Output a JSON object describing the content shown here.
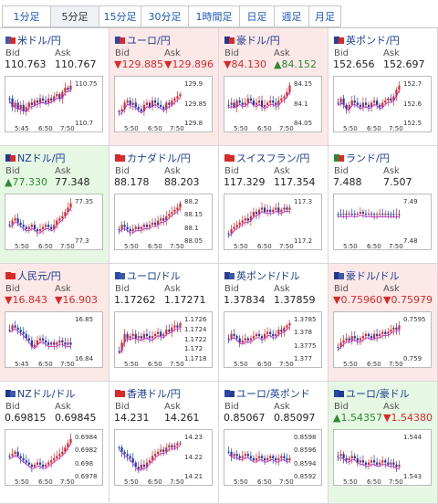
{
  "tabs": [
    {
      "label": "1分足",
      "active": false
    },
    {
      "label": "5分足",
      "active": true
    },
    {
      "label": "15分足",
      "active": false
    },
    {
      "label": "30分足",
      "active": false
    },
    {
      "label": "1時間足",
      "active": false
    },
    {
      "label": "日足",
      "active": false
    },
    {
      "label": "週足",
      "active": false
    },
    {
      "label": "月足",
      "active": false
    }
  ],
  "labels": {
    "bid": "Bid",
    "ask": "Ask"
  },
  "colors": {
    "up_bg": "#e6f7e3",
    "down_bg": "#fde8e8",
    "up_text": "#2d8a32",
    "down_text": "#d92a2a",
    "candle_up": "#d92a2a",
    "candle_down": "#1a3db8",
    "ma": "#c020c0"
  },
  "pairs": [
    {
      "name": "米ドル/円",
      "flag": "us-jp-flag-icon",
      "bid": "110.763",
      "ask": "110.767",
      "dir": "flat",
      "yticks": [
        "110.75",
        "110.7"
      ],
      "xticks": [
        "5:45",
        "6:50",
        "7:50"
      ],
      "trend": [
        0.6,
        0.4,
        0.5,
        0.35,
        0.45,
        0.3,
        0.4,
        0.5,
        0.45,
        0.55,
        0.5,
        0.6,
        0.55,
        0.5,
        0.6,
        0.55,
        0.65,
        0.7,
        0.6,
        0.75,
        0.85,
        0.8,
        0.9
      ]
    },
    {
      "name": "ユーロ/円",
      "flag": "eu-jp-flag-icon",
      "bid": "▼129.885",
      "ask": "▼129.896",
      "dir": "down",
      "yticks": [
        "129.9",
        "129.85",
        "129.8"
      ],
      "xticks": [
        "5:50",
        "6:50",
        "7:50"
      ],
      "trend": [
        0.3,
        0.35,
        0.5,
        0.55,
        0.45,
        0.5,
        0.4,
        0.35,
        0.3,
        0.45,
        0.5,
        0.4,
        0.55,
        0.5,
        0.45,
        0.4,
        0.35,
        0.5,
        0.45,
        0.55,
        0.6,
        0.65,
        0.7
      ]
    },
    {
      "name": "豪ドル/円",
      "flag": "au-jp-flag-icon",
      "bid": "▼84.130",
      "ask": "▲84.152",
      "dir": "down",
      "yticks": [
        "84.15",
        "84.1",
        "84.05"
      ],
      "xticks": [
        "5:50",
        "6:50",
        "7:50"
      ],
      "trend": [
        0.45,
        0.5,
        0.4,
        0.55,
        0.5,
        0.45,
        0.5,
        0.6,
        0.55,
        0.45,
        0.5,
        0.55,
        0.4,
        0.45,
        0.5,
        0.55,
        0.5,
        0.45,
        0.55,
        0.6,
        0.65,
        0.75,
        0.9
      ]
    },
    {
      "name": "英ポンド/円",
      "flag": "gb-jp-flag-icon",
      "bid": "152.656",
      "ask": "152.697",
      "dir": "flat",
      "yticks": [
        "152.7",
        "152.6",
        "152.5"
      ],
      "xticks": [
        "5:50",
        "6:50",
        "7:50"
      ],
      "trend": [
        0.5,
        0.6,
        0.45,
        0.35,
        0.45,
        0.55,
        0.5,
        0.45,
        0.4,
        0.5,
        0.45,
        0.4,
        0.5,
        0.55,
        0.45,
        0.4,
        0.5,
        0.55,
        0.6,
        0.55,
        0.65,
        0.8,
        0.9
      ]
    },
    {
      "name": "NZドル/円",
      "flag": "nz-jp-flag-icon",
      "bid": "▲77.330",
      "ask": "77.348",
      "dir": "up",
      "yticks": [
        "77.35",
        "77.3"
      ],
      "xticks": [
        "5:50",
        "6:50",
        "7:50"
      ],
      "trend": [
        0.4,
        0.5,
        0.55,
        0.45,
        0.4,
        0.35,
        0.3,
        0.35,
        0.4,
        0.3,
        0.25,
        0.3,
        0.35,
        0.4,
        0.35,
        0.3,
        0.4,
        0.5,
        0.55,
        0.6,
        0.7,
        0.8,
        0.9
      ]
    },
    {
      "name": "カナダドル/円",
      "flag": "ca-jp-flag-icon",
      "bid": "88.178",
      "ask": "88.203",
      "dir": "flat",
      "yticks": [
        "88.2",
        "88.15",
        "88.1",
        "88.05"
      ],
      "xticks": [
        "5:50",
        "6:50",
        "7:50"
      ],
      "trend": [
        0.3,
        0.4,
        0.35,
        0.3,
        0.25,
        0.3,
        0.35,
        0.3,
        0.35,
        0.4,
        0.35,
        0.4,
        0.45,
        0.4,
        0.5,
        0.55,
        0.5,
        0.6,
        0.65,
        0.7,
        0.75,
        0.8,
        0.9
      ]
    },
    {
      "name": "スイスフラン/円",
      "flag": "ch-jp-flag-icon",
      "bid": "117.329",
      "ask": "117.354",
      "dir": "flat",
      "yticks": [
        "117.3",
        "117.2"
      ],
      "xticks": [
        "5:50",
        "6:50",
        "7:50"
      ],
      "trend": [
        0.2,
        0.3,
        0.35,
        0.4,
        0.45,
        0.5,
        0.55,
        0.5,
        0.6,
        0.7,
        0.65,
        0.75,
        0.8,
        0.7,
        0.75,
        0.7,
        0.75,
        0.8,
        0.7,
        0.75,
        0.8,
        0.75,
        0.8
      ]
    },
    {
      "name": "ランド/円",
      "flag": "za-jp-flag-icon",
      "bid": "7.488",
      "ask": "7.507",
      "dir": "flat",
      "yticks": [
        "7.49",
        "7.48"
      ],
      "xticks": [
        "5:50",
        "6:50",
        "7:50"
      ],
      "trend": [
        0.65,
        0.65,
        0.66,
        0.65,
        0.66,
        0.66,
        0.65,
        0.66,
        0.7,
        0.66,
        0.65,
        0.66,
        0.65,
        0.64,
        0.65,
        0.66,
        0.65,
        0.66,
        0.65,
        0.65,
        0.64,
        0.65,
        0.65
      ]
    },
    {
      "name": "人民元/円",
      "flag": "cn-jp-flag-icon",
      "bid": "▼16.843",
      "ask": "▼16.903",
      "dir": "down",
      "yticks": [
        "16.85",
        "16.84"
      ],
      "xticks": [
        "5:45",
        "6:50",
        "7:50"
      ],
      "trend": [
        0.7,
        0.8,
        0.75,
        0.7,
        0.65,
        0.6,
        0.5,
        0.45,
        0.3,
        0.35,
        0.45,
        0.5,
        0.45,
        0.4,
        0.35,
        0.4,
        0.35,
        0.4,
        0.45,
        0.4,
        0.35,
        0.4,
        0.35
      ]
    },
    {
      "name": "ユーロ/ドル",
      "flag": "eu-us-flag-icon",
      "bid": "1.17262",
      "ask": "1.17271",
      "dir": "flat",
      "yticks": [
        "1.1726",
        "1.1724",
        "1.1722",
        "1.172",
        "1.1718"
      ],
      "xticks": [
        "5:50",
        "6:50",
        "7:50"
      ],
      "trend": [
        0.2,
        0.4,
        0.6,
        0.5,
        0.55,
        0.6,
        0.5,
        0.55,
        0.5,
        0.6,
        0.55,
        0.5,
        0.55,
        0.6,
        0.65,
        0.55,
        0.6,
        0.7,
        0.65,
        0.75,
        0.8,
        0.75,
        0.85
      ]
    },
    {
      "name": "英ポンド/ドル",
      "flag": "gb-us-flag-icon",
      "bid": "1.37834",
      "ask": "1.37859",
      "dir": "flat",
      "yticks": [
        "1.3785",
        "1.378",
        "1.3775",
        "1.377"
      ],
      "xticks": [
        "5:50",
        "6:50",
        "7:50"
      ],
      "trend": [
        0.5,
        0.6,
        0.55,
        0.5,
        0.4,
        0.45,
        0.5,
        0.45,
        0.5,
        0.55,
        0.6,
        0.55,
        0.5,
        0.6,
        0.65,
        0.6,
        0.55,
        0.6,
        0.7,
        0.65,
        0.75,
        0.8,
        0.85
      ]
    },
    {
      "name": "豪ドル/ドル",
      "flag": "au-us-flag-icon",
      "bid": "▼0.75960",
      "ask": "▼0.75979",
      "dir": "down",
      "yticks": [
        "0.7595",
        "0.759"
      ],
      "xticks": [
        "5:50",
        "6:50",
        "7:50"
      ],
      "trend": [
        0.3,
        0.4,
        0.45,
        0.5,
        0.45,
        0.55,
        0.5,
        0.45,
        0.5,
        0.55,
        0.6,
        0.55,
        0.5,
        0.6,
        0.55,
        0.6,
        0.65,
        0.6,
        0.65,
        0.7,
        0.75,
        0.7,
        0.8
      ]
    },
    {
      "name": "NZドル/ドル",
      "flag": "nz-us-flag-icon",
      "bid": "0.69815",
      "ask": "0.69845",
      "dir": "flat",
      "yticks": [
        "0.6984",
        "0.6982",
        "0.698",
        "0.6978"
      ],
      "xticks": [
        "5:50",
        "6:50",
        "7:50"
      ],
      "trend": [
        0.5,
        0.55,
        0.6,
        0.5,
        0.45,
        0.4,
        0.35,
        0.3,
        0.25,
        0.3,
        0.35,
        0.3,
        0.25,
        0.3,
        0.35,
        0.4,
        0.45,
        0.5,
        0.55,
        0.6,
        0.7,
        0.8,
        0.9
      ]
    },
    {
      "name": "香港ドル/円",
      "flag": "hk-jp-flag-icon",
      "bid": "14.231",
      "ask": "14.261",
      "dir": "flat",
      "yticks": [
        "14.23",
        "14.22",
        "14.21"
      ],
      "xticks": [
        "5:50",
        "6:50",
        "7:50"
      ],
      "trend": [
        0.7,
        0.6,
        0.55,
        0.5,
        0.45,
        0.35,
        0.25,
        0.2,
        0.3,
        0.25,
        0.35,
        0.4,
        0.5,
        0.55,
        0.6,
        0.65,
        0.6,
        0.7,
        0.75,
        0.7,
        0.75,
        0.8,
        0.8
      ]
    },
    {
      "name": "ユーロ/英ポンド",
      "flag": "eu-gb-flag-icon",
      "bid": "0.85067",
      "ask": "0.85097",
      "dir": "flat",
      "yticks": [
        "0.8598",
        "0.8596",
        "0.8594",
        "0.8592"
      ],
      "xticks": [
        "5:50",
        "6:50",
        "7:50"
      ],
      "trend": [
        0.6,
        0.5,
        0.55,
        0.5,
        0.45,
        0.5,
        0.55,
        0.5,
        0.45,
        0.4,
        0.45,
        0.5,
        0.45,
        0.4,
        0.45,
        0.5,
        0.45,
        0.4,
        0.45,
        0.5,
        0.45,
        0.4,
        0.45
      ]
    },
    {
      "name": "ユーロ/豪ドル",
      "flag": "eu-au-flag-icon",
      "bid": "▲1.54357",
      "ask": "▼1.54380",
      "dir": "up",
      "yticks": [
        "1.544",
        "1.543"
      ],
      "xticks": [
        "5:50",
        "6:50",
        "7:50"
      ],
      "trend": [
        0.5,
        0.55,
        0.45,
        0.4,
        0.45,
        0.5,
        0.45,
        0.35,
        0.4,
        0.35,
        0.3,
        0.35,
        0.4,
        0.35,
        0.3,
        0.35,
        0.4,
        0.35,
        0.3,
        0.35,
        0.3,
        0.25,
        0.3
      ]
    }
  ]
}
